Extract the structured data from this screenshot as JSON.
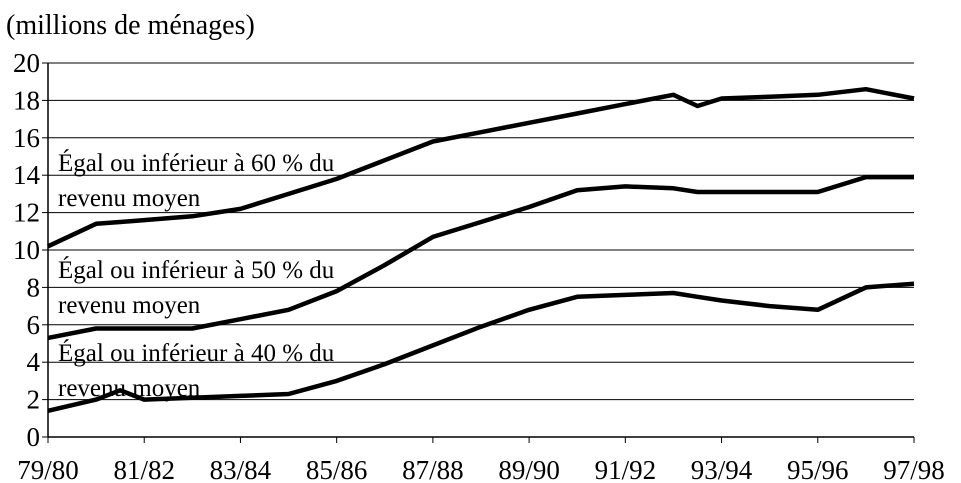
{
  "chart_data": {
    "type": "line",
    "unit_label": "(millions de ménages)",
    "title": "",
    "xlabel": "",
    "ylabel": "(millions de ménages)",
    "ylim": [
      0,
      20
    ],
    "yticks": [
      0,
      2,
      4,
      6,
      8,
      10,
      12,
      14,
      16,
      18,
      20
    ],
    "grid": true,
    "legend": "inline labels",
    "x_tick_labels": [
      "79/80",
      "81/82",
      "83/84",
      "85/86",
      "87/88",
      "89/90",
      "91/92",
      "93/94",
      "95/96",
      "97/98"
    ],
    "x": [
      1979.5,
      1980.5,
      1981,
      1981.5,
      1982.5,
      1983.5,
      1984.5,
      1985.5,
      1986.5,
      1987.5,
      1988.5,
      1989.5,
      1990.5,
      1991.5,
      1992.5,
      1993,
      1993.5,
      1994.5,
      1995.5,
      1996.5,
      1997.5
    ],
    "series": [
      {
        "name": "Égal ou inférieur à 60 % du revenu moyen",
        "label_lines": [
          "Égal ou inférieur à 60 % du",
          "revenu moyen"
        ],
        "values": [
          10.2,
          11.4,
          11.5,
          11.6,
          11.8,
          12.2,
          13.0,
          13.8,
          14.8,
          15.8,
          16.3,
          16.8,
          17.3,
          17.8,
          18.3,
          17.7,
          18.1,
          18.2,
          18.3,
          18.6,
          18.1
        ]
      },
      {
        "name": "Égal ou inférieur à 50 % du revenu moyen",
        "label_lines": [
          "Égal ou inférieur à 50 % du",
          "revenu moyen"
        ],
        "values": [
          5.3,
          5.8,
          5.8,
          5.8,
          5.8,
          6.3,
          6.8,
          7.8,
          9.2,
          10.7,
          11.5,
          12.3,
          13.2,
          13.4,
          13.3,
          13.1,
          13.1,
          13.1,
          13.1,
          13.9,
          13.9
        ]
      },
      {
        "name": "Égal ou inférieur à 40 % du revenu moyen",
        "label_lines": [
          "Égal ou inférieur à 40 % du",
          "revenu moyen"
        ],
        "values": [
          1.4,
          2.0,
          2.5,
          2.0,
          2.1,
          2.2,
          2.3,
          3.0,
          3.9,
          4.9,
          5.9,
          6.8,
          7.5,
          7.6,
          7.7,
          7.5,
          7.3,
          7.0,
          6.8,
          8.0,
          8.2
        ]
      }
    ]
  }
}
